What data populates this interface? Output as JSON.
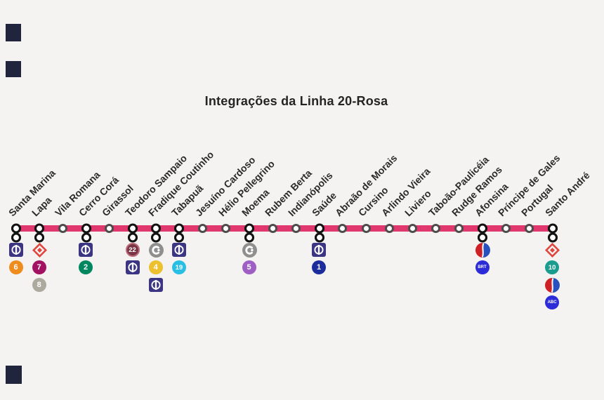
{
  "title": "Integrações da Linha 20-Rosa",
  "line": {
    "name": "Linha 20-Rosa",
    "color": "#E1376F"
  },
  "stations": [
    {
      "name": "Santa Marina",
      "transfer": true,
      "icons": [
        "metro",
        "line-6"
      ]
    },
    {
      "name": "Lapa",
      "transfer": true,
      "icons": [
        "cptm",
        "line-7",
        "line-8"
      ]
    },
    {
      "name": "Vila Romana",
      "transfer": false,
      "icons": []
    },
    {
      "name": "Cerro Corá",
      "transfer": true,
      "icons": [
        "metro",
        "line-2"
      ]
    },
    {
      "name": "Girassol",
      "transfer": false,
      "icons": []
    },
    {
      "name": "Teodoro Sampaio",
      "transfer": true,
      "icons": [
        "line-22",
        "metro"
      ]
    },
    {
      "name": "Fradique Coutinho",
      "transfer": true,
      "icons": [
        "viaquatro",
        "line-4",
        "metro"
      ]
    },
    {
      "name": "Tabapuã",
      "transfer": true,
      "icons": [
        "metro",
        "line-19"
      ]
    },
    {
      "name": "Jesuíno Cardoso",
      "transfer": false,
      "icons": []
    },
    {
      "name": "Hélio Pellegrino",
      "transfer": false,
      "icons": []
    },
    {
      "name": "Moema",
      "transfer": true,
      "icons": [
        "viamobilidade",
        "line-5"
      ]
    },
    {
      "name": "Rubem Berta",
      "transfer": false,
      "icons": []
    },
    {
      "name": "Indianópolis",
      "transfer": false,
      "icons": []
    },
    {
      "name": "Saúde",
      "transfer": true,
      "icons": [
        "metro",
        "line-1"
      ]
    },
    {
      "name": "Abraão de Morais",
      "transfer": false,
      "icons": []
    },
    {
      "name": "Cursino",
      "transfer": false,
      "icons": []
    },
    {
      "name": "Arlindo Vieira",
      "transfer": false,
      "icons": []
    },
    {
      "name": "Liviero",
      "transfer": false,
      "icons": []
    },
    {
      "name": "Taboão-Paulicéia",
      "transfer": false,
      "icons": []
    },
    {
      "name": "Rudge Ramos",
      "transfer": false,
      "icons": []
    },
    {
      "name": "Afonsina",
      "transfer": true,
      "icons": [
        "brt-abc",
        "badge-brt"
      ]
    },
    {
      "name": "Príncipe de Gales",
      "transfer": false,
      "icons": []
    },
    {
      "name": "Portugal",
      "transfer": false,
      "icons": []
    },
    {
      "name": "Santo André",
      "transfer": true,
      "icons": [
        "cptm",
        "line-10",
        "brt-abc",
        "badge-abc"
      ]
    }
  ],
  "icon_defs": {
    "metro": {
      "kind": "metro",
      "name": "metro-sp-logo-icon",
      "bg": "#3B3583",
      "fg": "#FFFFFF"
    },
    "cptm": {
      "kind": "cptm",
      "name": "cptm-logo-icon",
      "color": "#E0463D"
    },
    "viaquatro": {
      "kind": "via",
      "name": "viaquatro-logo-icon",
      "bg": "#8F8F8F",
      "fg": "#FFFFFF"
    },
    "viamobilidade": {
      "kind": "via",
      "name": "viamobilidade-logo-icon",
      "bg": "#8F8F8F",
      "fg": "#FFFFFF"
    },
    "brt-abc": {
      "kind": "brtabc",
      "name": "brt-abc-logo-icon",
      "left": "#CE2127",
      "right": "#2850BE",
      "stripe": "#FFFFFF"
    },
    "line-1": {
      "kind": "badge",
      "name": "line-1-azul-badge",
      "text": "1",
      "bg": "#1B2C9C"
    },
    "line-2": {
      "kind": "badge",
      "name": "line-2-verde-badge",
      "text": "2",
      "bg": "#00875F"
    },
    "line-4": {
      "kind": "badge",
      "name": "line-4-amarela-badge",
      "text": "4",
      "bg": "#EDC02F"
    },
    "line-5": {
      "kind": "badge",
      "name": "line-5-lilas-badge",
      "text": "5",
      "bg": "#9E5EC4"
    },
    "line-6": {
      "kind": "badge",
      "name": "line-6-laranja-badge",
      "text": "6",
      "bg": "#EE8C1E"
    },
    "line-7": {
      "kind": "badge",
      "name": "line-7-rubi-badge",
      "text": "7",
      "bg": "#A31262"
    },
    "line-8": {
      "kind": "badge",
      "name": "line-8-diamante-badge",
      "text": "8",
      "bg": "#ACA99F"
    },
    "line-10": {
      "kind": "badge",
      "name": "line-10-turquesa-badge",
      "text": "10",
      "bg": "#1C9C8F"
    },
    "line-19": {
      "kind": "badge",
      "name": "line-19-celeste-badge",
      "text": "19",
      "bg": "#29BEE4"
    },
    "line-22": {
      "kind": "badge",
      "name": "line-22-badge",
      "text": "22",
      "bg": "#7A3444",
      "border": "#BA6B77"
    },
    "badge-brt": {
      "kind": "badge",
      "name": "brt-badge",
      "text": "BRT",
      "bg": "#2B2BD8"
    },
    "badge-abc": {
      "kind": "badge",
      "name": "abc-badge",
      "text": "ABC",
      "bg": "#2B2BD8"
    }
  },
  "marker_colors": {
    "transfer_ring": "#121212",
    "simple_ring": "#4C4C4C",
    "fill": "#FFFFFF"
  }
}
